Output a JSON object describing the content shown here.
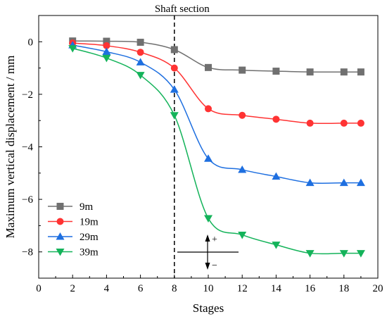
{
  "chart_data": {
    "type": "line",
    "title": "",
    "xlabel": "Stages",
    "ylabel": "Maximum vertical displacement / mm",
    "xlim": [
      0,
      20
    ],
    "ylim": [
      -9,
      1
    ],
    "xticks": [
      0,
      2,
      4,
      6,
      8,
      10,
      12,
      14,
      16,
      18,
      20
    ],
    "yticks": [
      0,
      -2,
      -4,
      -6,
      -8
    ],
    "grid": false,
    "legend_position": "bottom-left",
    "x": [
      2,
      4,
      6,
      8,
      10,
      12,
      14,
      16,
      18,
      19
    ],
    "series": [
      {
        "name": "9m",
        "marker": "square",
        "color": "#707070",
        "values": [
          0.03,
          0.02,
          -0.02,
          -0.3,
          -0.98,
          -1.08,
          -1.12,
          -1.15,
          -1.15,
          -1.15
        ]
      },
      {
        "name": "19m",
        "marker": "circle",
        "color": "#ff3333",
        "values": [
          -0.05,
          -0.15,
          -0.4,
          -1.0,
          -2.55,
          -2.8,
          -2.95,
          -3.1,
          -3.1,
          -3.1
        ]
      },
      {
        "name": "29m",
        "marker": "triangle-up",
        "color": "#1e6fe0",
        "values": [
          -0.13,
          -0.38,
          -0.78,
          -1.82,
          -4.45,
          -4.87,
          -5.13,
          -5.37,
          -5.37,
          -5.37
        ]
      },
      {
        "name": "39m",
        "marker": "triangle-down",
        "color": "#14b35a",
        "values": [
          -0.25,
          -0.62,
          -1.27,
          -2.8,
          -6.72,
          -7.35,
          -7.73,
          -8.05,
          -8.05,
          -8.05
        ]
      }
    ],
    "annotations": {
      "shaft_label": "Shaft section",
      "shaft_x": 8,
      "plus_sign": "+",
      "minus_sign": "−"
    }
  }
}
